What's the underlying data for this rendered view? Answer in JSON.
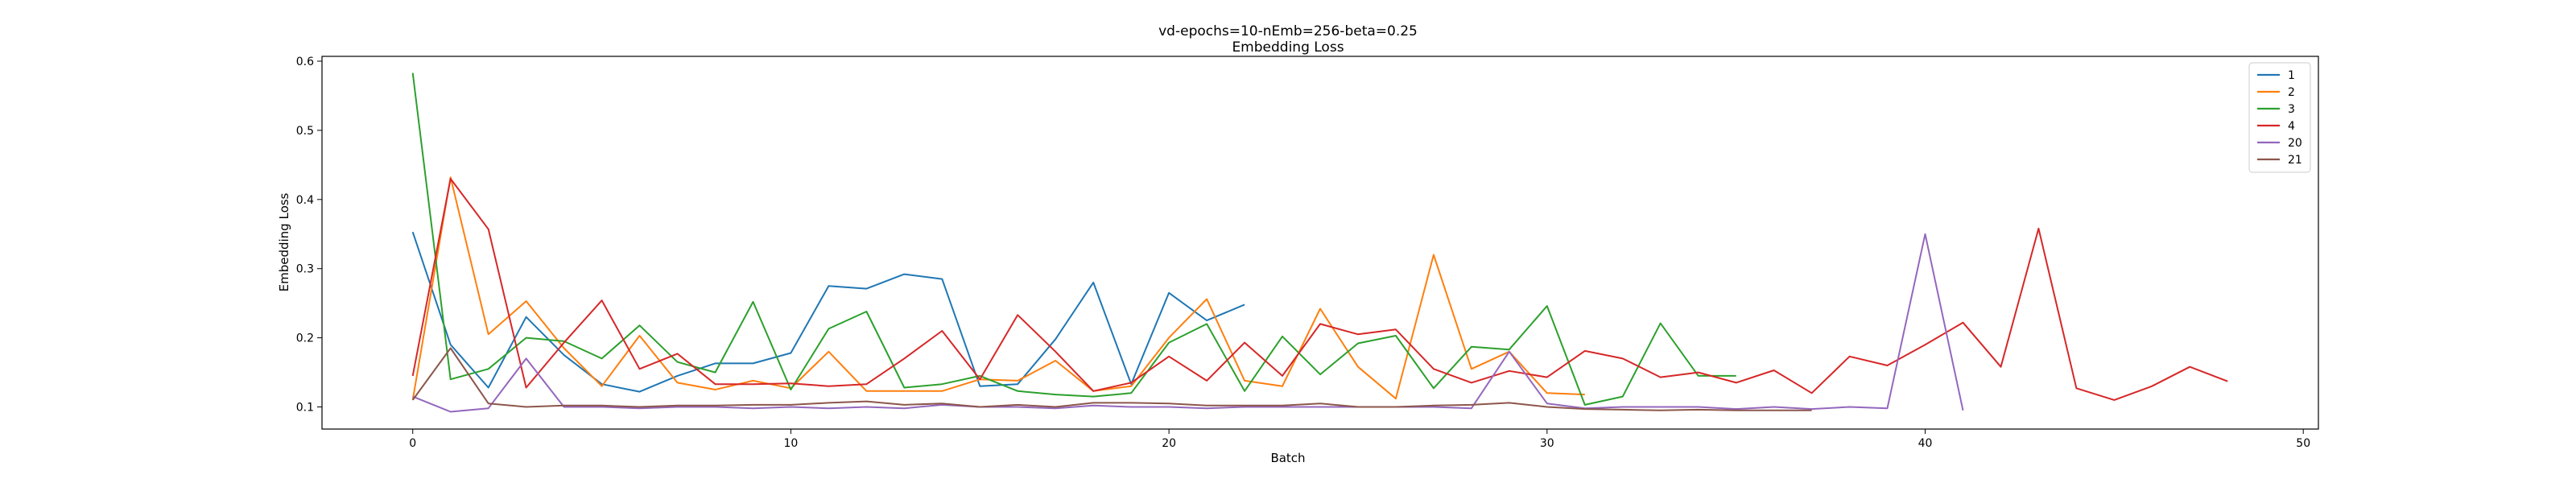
{
  "chart_data": {
    "type": "line",
    "title": "vd-epochs=10-nEmb=256-beta=0.25",
    "subtitle": "Embedding Loss",
    "xlabel": "Batch",
    "ylabel": "Embedding Loss",
    "xlim": [
      -2.4,
      50.4
    ],
    "ylim": [
      0.068,
      0.607
    ],
    "xticks": [
      0,
      10,
      20,
      30,
      40,
      50
    ],
    "yticks": [
      0.1,
      0.2,
      0.3,
      0.4,
      0.5,
      0.6
    ],
    "grid": false,
    "legend_position": "top-right",
    "series": [
      {
        "name": "1",
        "color": "#1f77b4",
        "x": [
          0,
          1,
          2,
          3,
          4,
          5,
          6,
          7,
          8,
          9,
          10,
          11,
          12,
          13,
          14,
          15,
          16,
          17,
          18,
          19,
          20,
          21,
          22
        ],
        "y": [
          0.353,
          0.19,
          0.128,
          0.23,
          0.175,
          0.133,
          0.122,
          0.145,
          0.163,
          0.163,
          0.178,
          0.275,
          0.271,
          0.292,
          0.285,
          0.13,
          0.133,
          0.198,
          0.28,
          0.133,
          0.265,
          0.225,
          0.248
        ]
      },
      {
        "name": "2",
        "color": "#ff7f0e",
        "x": [
          0,
          1,
          2,
          3,
          4,
          5,
          6,
          7,
          8,
          9,
          10,
          11,
          12,
          13,
          14,
          15,
          16,
          17,
          18,
          19,
          20,
          21,
          22,
          23,
          24,
          25,
          26,
          27,
          28,
          29,
          30,
          31
        ],
        "y": [
          0.11,
          0.432,
          0.205,
          0.253,
          0.185,
          0.13,
          0.203,
          0.135,
          0.125,
          0.138,
          0.127,
          0.18,
          0.123,
          0.123,
          0.123,
          0.14,
          0.138,
          0.167,
          0.123,
          0.13,
          0.2,
          0.256,
          0.138,
          0.13,
          0.242,
          0.158,
          0.112,
          0.32,
          0.155,
          0.18,
          0.12,
          0.118
        ]
      },
      {
        "name": "3",
        "color": "#2ca02c",
        "x": [
          0,
          1,
          2,
          3,
          4,
          5,
          6,
          7,
          8,
          9,
          10,
          11,
          12,
          13,
          14,
          15,
          16,
          17,
          18,
          19,
          20,
          21,
          22,
          23,
          24,
          25,
          26,
          27,
          28,
          29,
          30,
          31,
          32,
          33,
          34,
          35
        ],
        "y": [
          0.583,
          0.14,
          0.155,
          0.2,
          0.195,
          0.17,
          0.218,
          0.165,
          0.15,
          0.252,
          0.125,
          0.213,
          0.238,
          0.128,
          0.133,
          0.145,
          0.123,
          0.118,
          0.115,
          0.12,
          0.193,
          0.22,
          0.123,
          0.202,
          0.147,
          0.192,
          0.203,
          0.127,
          0.187,
          0.183,
          0.246,
          0.103,
          0.115,
          0.221,
          0.145,
          0.145
        ]
      },
      {
        "name": "4",
        "color": "#d62728",
        "x": [
          0,
          1,
          2,
          3,
          4,
          5,
          6,
          7,
          8,
          9,
          10,
          11,
          12,
          13,
          14,
          15,
          16,
          17,
          18,
          19,
          20,
          21,
          22,
          23,
          24,
          25,
          26,
          27,
          28,
          29,
          30,
          31,
          32,
          33,
          34,
          35,
          36,
          37,
          38,
          39,
          40,
          41,
          42,
          43,
          44,
          45,
          46,
          47,
          48
        ],
        "y": [
          0.145,
          0.43,
          0.357,
          0.128,
          0.193,
          0.254,
          0.155,
          0.177,
          0.133,
          0.133,
          0.134,
          0.13,
          0.133,
          0.17,
          0.21,
          0.14,
          0.233,
          0.18,
          0.123,
          0.135,
          0.173,
          0.138,
          0.193,
          0.145,
          0.22,
          0.205,
          0.212,
          0.155,
          0.135,
          0.152,
          0.143,
          0.181,
          0.17,
          0.143,
          0.15,
          0.135,
          0.153,
          0.12,
          0.173,
          0.16,
          0.19,
          0.222,
          0.158,
          0.358,
          0.127,
          0.11,
          0.13,
          0.158,
          0.137
        ]
      },
      {
        "name": "20",
        "color": "#9467bd",
        "x": [
          0,
          1,
          2,
          3,
          4,
          5,
          6,
          7,
          8,
          9,
          10,
          11,
          12,
          13,
          14,
          15,
          16,
          17,
          18,
          19,
          20,
          21,
          22,
          23,
          24,
          25,
          26,
          27,
          28,
          29,
          30,
          31,
          32,
          33,
          34,
          35,
          36,
          37,
          38,
          39,
          40,
          41
        ],
        "y": [
          0.115,
          0.093,
          0.098,
          0.17,
          0.1,
          0.1,
          0.098,
          0.1,
          0.1,
          0.098,
          0.1,
          0.098,
          0.1,
          0.098,
          0.103,
          0.1,
          0.1,
          0.098,
          0.102,
          0.1,
          0.1,
          0.098,
          0.1,
          0.1,
          0.1,
          0.1,
          0.1,
          0.1,
          0.098,
          0.18,
          0.105,
          0.098,
          0.1,
          0.1,
          0.1,
          0.097,
          0.1,
          0.097,
          0.1,
          0.098,
          0.35,
          0.095
        ]
      },
      {
        "name": "21",
        "color": "#8c564b",
        "x": [
          0,
          1,
          2,
          3,
          4,
          5,
          6,
          7,
          8,
          9,
          10,
          11,
          12,
          13,
          14,
          15,
          16,
          17,
          18,
          19,
          20,
          21,
          22,
          23,
          24,
          25,
          26,
          27,
          28,
          29,
          30,
          31,
          32,
          33,
          34,
          35,
          36,
          37
        ],
        "y": [
          0.11,
          0.185,
          0.105,
          0.1,
          0.102,
          0.102,
          0.1,
          0.102,
          0.102,
          0.103,
          0.103,
          0.106,
          0.108,
          0.103,
          0.105,
          0.1,
          0.103,
          0.1,
          0.106,
          0.106,
          0.105,
          0.102,
          0.102,
          0.102,
          0.105,
          0.1,
          0.1,
          0.102,
          0.103,
          0.106,
          0.1,
          0.097,
          0.096,
          0.095,
          0.096,
          0.095,
          0.095,
          0.095
        ]
      }
    ]
  }
}
